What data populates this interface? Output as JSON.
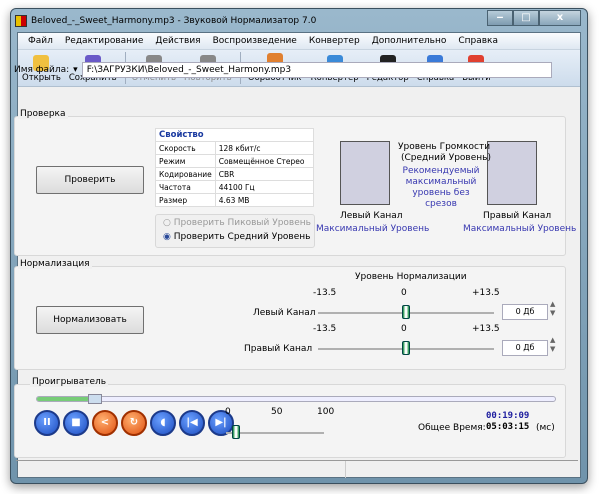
{
  "window": {
    "title": "Beloved_-_Sweet_Harmony.mp3 - Звуковой Нормализатор 7.0",
    "minimize": "‒",
    "maximize": "□",
    "close": "x"
  },
  "menu": [
    "Файл",
    "Редактирование",
    "Действия",
    "Воспроизведение",
    "Конвертер",
    "Дополнительно",
    "Справка"
  ],
  "toolbar": [
    {
      "label": "Открыть",
      "icon": "folder-open-icon",
      "color": "#f0c040",
      "enabled": true
    },
    {
      "label": "Сохранить",
      "icon": "save-icon",
      "color": "#6a5ac8",
      "enabled": true
    },
    {
      "label": "Отменить",
      "icon": "undo-icon",
      "color": "#888888",
      "enabled": false
    },
    {
      "label": "Повторить",
      "icon": "redo-icon",
      "color": "#888888",
      "enabled": false
    },
    {
      "label": "Пакетный Обработчик",
      "icon": "batch-icon",
      "color": "#e08030",
      "enabled": true
    },
    {
      "label": "Конвертер",
      "icon": "converter-icon",
      "color": "#3a8ad8",
      "enabled": true
    },
    {
      "label": "Редактор",
      "icon": "editor-icon",
      "color": "#222222",
      "enabled": true
    },
    {
      "label": "Справка",
      "icon": "help-icon",
      "color": "#3a7ad8",
      "enabled": true
    },
    {
      "label": "Выйти",
      "icon": "exit-icon",
      "color": "#e04030",
      "enabled": true
    }
  ],
  "file": {
    "label": "Имя файла:",
    "value": "F:\\ЗАГРУЗКИ\\Beloved_-_Sweet_Harmony.mp3"
  },
  "check": {
    "group": "Проверка",
    "button": "Проверить",
    "table": {
      "header": "Свойство",
      "rows": [
        [
          "Скорость",
          "128 кбит/с"
        ],
        [
          "Режим",
          "Совмещённое Стерео"
        ],
        [
          "Кодирование",
          "CBR"
        ],
        [
          "Частота",
          "44100 Гц"
        ],
        [
          "Размер",
          "4.63 MB"
        ]
      ]
    },
    "radio_peak": "Проверить Пиковый Уровень",
    "radio_avg": "Проверить Средний Уровень",
    "selected": "avg",
    "loudness_title": "Уровень Громкости",
    "loudness_sub": "(Средний Уровень)",
    "recommended": "Рекомендуемый максимальный уровень без срезов",
    "left": "Левый Канал",
    "right": "Правый Канал",
    "left_max": "Максимальный Уровень",
    "right_max": "Максимальный Уровень"
  },
  "normalize": {
    "group": "Нормализация",
    "button": "Нормализовать",
    "title": "Уровень Нормализации",
    "min": "-13.5",
    "mid": "0",
    "max": "+13.5",
    "left_label": "Левый Канал",
    "right_label": "Правый Канал",
    "left_value": "0 Дб",
    "right_value": "0 Дб",
    "left_level": 0,
    "right_level": 0
  },
  "player": {
    "group": "Проигрыватель",
    "progress": 0.1,
    "vol_ticks": [
      "0",
      "50",
      "100"
    ],
    "volume": 10,
    "current": "00:19:09",
    "total_label": "Общее Время:",
    "total": "05:03:15",
    "unit": "(мс)",
    "buttons": [
      {
        "name": "pause",
        "g": "II"
      },
      {
        "name": "stop",
        "g": "■"
      },
      {
        "name": "share",
        "g": "<"
      },
      {
        "name": "repeat",
        "g": "↻"
      },
      {
        "name": "volume",
        "g": "◖"
      },
      {
        "name": "previous",
        "g": "|◀"
      },
      {
        "name": "next",
        "g": "▶|"
      }
    ]
  }
}
